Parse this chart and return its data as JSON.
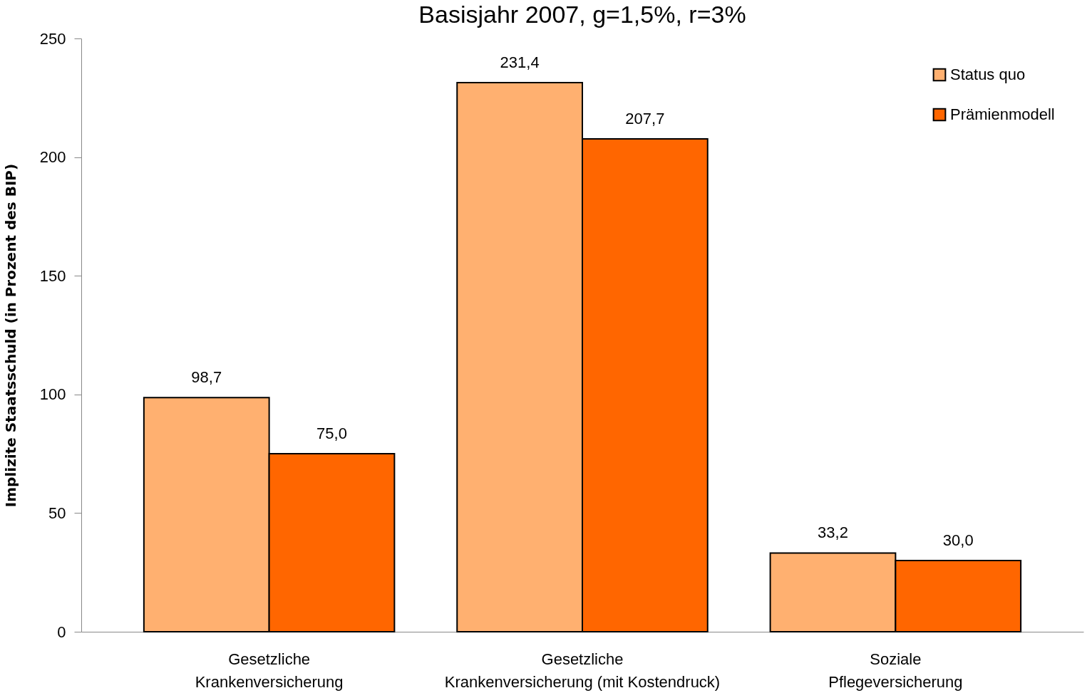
{
  "chart_data": {
    "type": "bar",
    "title": "Basisjahr 2007, g=1,5%, r=3%",
    "ylabel": "Implizite Staatsschuld (in Prozent des BIP)",
    "categories": [
      "Gesetzliche Krankenversicherung",
      "Gesetzliche Krankenversicherung (mit Kostendruck)",
      "Soziale Pflegeversicherung"
    ],
    "series": [
      {
        "name": "Status quo",
        "color": "#ffb070",
        "values": [
          98.7,
          231.4,
          33.2
        ],
        "value_labels": [
          "98,7",
          "231,4",
          "33,2"
        ]
      },
      {
        "name": "Prämienmodell",
        "color": "#ff6600",
        "values": [
          75.0,
          207.7,
          30.0
        ],
        "value_labels": [
          "75,0",
          "207,7",
          "30,0"
        ]
      }
    ],
    "ylim": [
      0,
      250
    ],
    "yticks": [
      0,
      50,
      100,
      150,
      200,
      250
    ],
    "grid": false,
    "legend": "top right"
  }
}
